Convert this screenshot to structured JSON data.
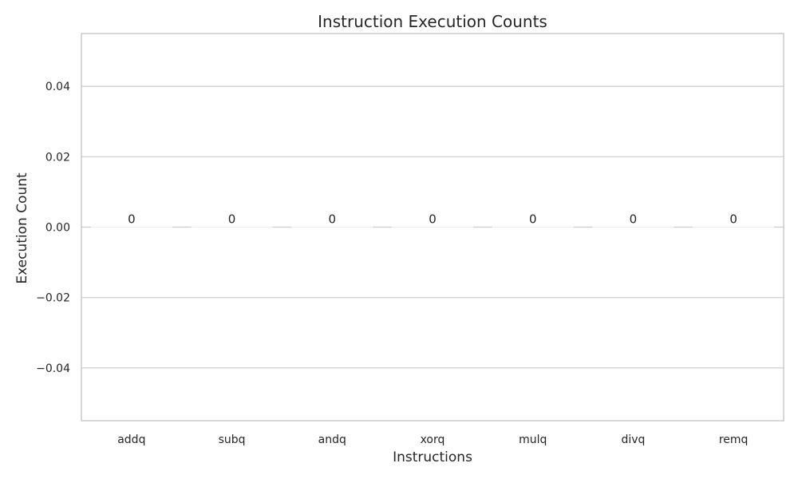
{
  "chart_data": {
    "type": "bar",
    "title": "Instruction Execution Counts",
    "xlabel": "Instructions",
    "ylabel": "Execution Count",
    "categories": [
      "addq",
      "subq",
      "andq",
      "xorq",
      "mulq",
      "divq",
      "remq"
    ],
    "values": [
      0,
      0,
      0,
      0,
      0,
      0,
      0
    ],
    "data_labels": [
      "0",
      "0",
      "0",
      "0",
      "0",
      "0",
      "0"
    ],
    "ylim": [
      -0.055,
      0.055
    ],
    "yticks": [
      -0.04,
      -0.02,
      0.0,
      0.02,
      0.04
    ],
    "ytick_labels": [
      "−0.04",
      "−0.02",
      "0.00",
      "0.02",
      "0.04"
    ],
    "grid": "horizontal",
    "bar_color": "#dddddd"
  }
}
